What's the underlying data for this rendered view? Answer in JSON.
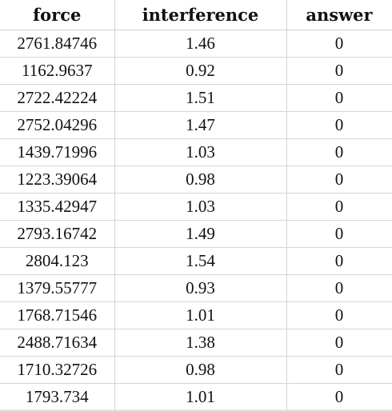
{
  "spreadsheet": {
    "columns": [
      "force",
      "interference",
      "answer"
    ],
    "rows": [
      [
        "2761.84746",
        "1.46",
        "0"
      ],
      [
        "1162.9637",
        "0.92",
        "0"
      ],
      [
        "2722.42224",
        "1.51",
        "0"
      ],
      [
        "2752.04296",
        "1.47",
        "0"
      ],
      [
        "1439.71996",
        "1.03",
        "0"
      ],
      [
        "1223.39064",
        "0.98",
        "0"
      ],
      [
        "1335.42947",
        "1.03",
        "0"
      ],
      [
        "2793.16742",
        "1.49",
        "0"
      ],
      [
        "2804.123",
        "1.54",
        "0"
      ],
      [
        "1379.55777",
        "0.93",
        "0"
      ],
      [
        "1768.71546",
        "1.01",
        "0"
      ],
      [
        "2488.71634",
        "1.38",
        "0"
      ],
      [
        "1710.32726",
        "0.98",
        "0"
      ],
      [
        "1793.734",
        "1.01",
        "0"
      ]
    ]
  }
}
